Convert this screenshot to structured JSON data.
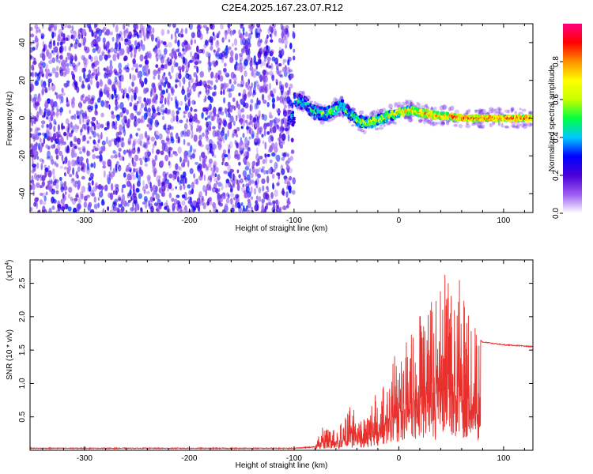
{
  "title": "C2E4.2025.167.23.07.R12",
  "chart_data": [
    {
      "type": "heatmap",
      "xlabel": "Height of straight line (km)",
      "ylabel": "Frequency (Hz)",
      "xlim": [
        -352,
        128
      ],
      "ylim": [
        -50,
        50
      ],
      "xticks": [
        -300,
        -200,
        -100,
        0,
        100
      ],
      "yticks": [
        -40,
        -20,
        0,
        20,
        40
      ],
      "xtick_labels": [
        "-300",
        "-200",
        "-100",
        "0",
        "100"
      ],
      "ytick_labels": [
        "-40",
        "-20",
        "0",
        "20",
        "40"
      ],
      "noise_region": [
        -352,
        -100
      ],
      "signal_track": [
        [
          -100,
          10
        ],
        [
          -90,
          8
        ],
        [
          -80,
          3
        ],
        [
          -70,
          2
        ],
        [
          -60,
          5
        ],
        [
          -55,
          7
        ],
        [
          -50,
          4
        ],
        [
          -40,
          -1
        ],
        [
          -30,
          -3
        ],
        [
          -20,
          -1
        ],
        [
          -10,
          1
        ],
        [
          0,
          3
        ],
        [
          10,
          4
        ],
        [
          20,
          3
        ],
        [
          30,
          2
        ],
        [
          40,
          1
        ],
        [
          50,
          1
        ],
        [
          60,
          0
        ],
        [
          80,
          0
        ],
        [
          100,
          0
        ],
        [
          128,
          0
        ]
      ],
      "colorbar": {
        "label": "Normalized spectral amplitude",
        "range": [
          0,
          1
        ],
        "ticks": [
          0.0,
          0.2,
          0.4,
          0.6,
          0.8
        ],
        "tick_labels": [
          "0.0",
          "0.2",
          "0.4",
          "0.6",
          "0.8"
        ],
        "colors": [
          "#ffffff",
          "#9b5cf0",
          "#4b00d8",
          "#0000ff",
          "#00c8ff",
          "#00ff40",
          "#c8ff00",
          "#ffff00",
          "#ff9000",
          "#ff0000",
          "#ff0080"
        ]
      }
    },
    {
      "type": "line",
      "xlabel": "Height of straight line (km)",
      "ylabel": "SNR (10 * v/v)",
      "scale_label": "(x10",
      "scale_exponent": "4",
      "scale_close": ")",
      "xlim": [
        -352,
        128
      ],
      "ylim": [
        0,
        2.85
      ],
      "xticks": [
        -300,
        -200,
        -100,
        0,
        100
      ],
      "yticks": [
        0.5,
        1.0,
        1.5,
        2.0,
        2.5
      ],
      "xtick_labels": [
        "-300",
        "-200",
        "-100",
        "0",
        "100"
      ],
      "ytick_labels": [
        "0.5",
        "1.0",
        "1.5",
        "2.0",
        "2.5"
      ],
      "color": "#e8302c",
      "envelope": [
        [
          -352,
          0.03
        ],
        [
          -100,
          0.03
        ],
        [
          -80,
          0.05
        ],
        [
          -75,
          0.35
        ],
        [
          -60,
          0.3
        ],
        [
          -50,
          0.55
        ],
        [
          -45,
          0.7
        ],
        [
          -40,
          0.55
        ],
        [
          -35,
          0.45
        ],
        [
          -30,
          0.5
        ],
        [
          -25,
          0.8
        ],
        [
          -20,
          0.95
        ],
        [
          -15,
          1.0
        ],
        [
          -10,
          1.15
        ],
        [
          -5,
          1.4
        ],
        [
          0,
          1.5
        ],
        [
          10,
          1.9
        ],
        [
          20,
          2.1
        ],
        [
          30,
          2.4
        ],
        [
          40,
          2.6
        ],
        [
          50,
          2.75
        ],
        [
          55,
          2.8
        ],
        [
          60,
          2.4
        ],
        [
          70,
          2.1
        ],
        [
          75,
          1.7
        ],
        [
          80,
          1.62
        ],
        [
          90,
          1.6
        ],
        [
          100,
          1.58
        ],
        [
          110,
          1.57
        ],
        [
          120,
          1.56
        ],
        [
          128,
          1.55
        ]
      ]
    }
  ]
}
